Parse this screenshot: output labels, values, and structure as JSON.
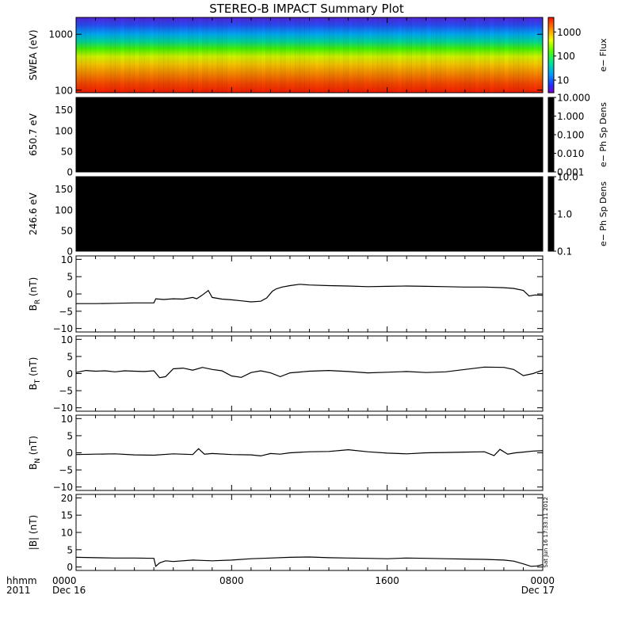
{
  "title": "STEREO-B IMPACT Summary Plot",
  "time_axis": {
    "row1_label": "hhmm",
    "row2_label": "2011",
    "ticks": [
      {
        "hour": 0,
        "label": "0000",
        "sub": "Dec 16"
      },
      {
        "hour": 8,
        "label": "0800",
        "sub": ""
      },
      {
        "hour": 16,
        "label": "1600",
        "sub": ""
      },
      {
        "hour": 24,
        "label": "0000",
        "sub": "Dec 17"
      }
    ],
    "range_hours": [
      0,
      24
    ]
  },
  "timestamp": "Sat Jun 16 17:33:11 2012",
  "colors": {
    "line": "#000000",
    "frame": "#000000",
    "background": "#ffffff",
    "empty_spectrogram": "#000000"
  },
  "chart_data": [
    {
      "type": "heatmap",
      "panel": "swea",
      "ylabel": "SWEA (eV)",
      "yscale": "log",
      "ylim": [
        90,
        2000
      ],
      "yticks": [
        {
          "v": 100,
          "label": "100"
        },
        {
          "v": 1000,
          "label": "1000"
        }
      ],
      "colorbar": {
        "label": "e− Flux",
        "scale": "log",
        "range": [
          3,
          4000
        ],
        "ticks": [
          {
            "v": 10,
            "label": "10"
          },
          {
            "v": 100,
            "label": "100"
          },
          {
            "v": 1000,
            "label": "1000"
          }
        ]
      },
      "energy_ev": [
        100,
        150,
        220,
        330,
        500,
        750,
        1100,
        1600
      ],
      "flux_profile": [
        3000,
        2000,
        900,
        350,
        130,
        45,
        14,
        4
      ]
    },
    {
      "type": "heatmap",
      "panel": "pad650",
      "ylabel": "650.7 eV",
      "ylim": [
        0,
        180
      ],
      "yticks": [
        {
          "v": 0,
          "label": "0"
        },
        {
          "v": 50,
          "label": "50"
        },
        {
          "v": 100,
          "label": "100"
        },
        {
          "v": 150,
          "label": "150"
        }
      ],
      "fill": "no data (black)",
      "colorbar": {
        "label": "e− Ph Sp Dens",
        "scale": "log",
        "range": [
          0.001,
          10
        ],
        "ticks": [
          {
            "v": 10,
            "label": "10.000"
          },
          {
            "v": 1,
            "label": "1.000"
          },
          {
            "v": 0.1,
            "label": "0.100"
          },
          {
            "v": 0.01,
            "label": "0.010"
          },
          {
            "v": 0.001,
            "label": "0.001"
          }
        ]
      }
    },
    {
      "type": "heatmap",
      "panel": "pad246",
      "ylabel": "246.6 eV",
      "ylim": [
        0,
        180
      ],
      "yticks": [
        {
          "v": 0,
          "label": "0"
        },
        {
          "v": 50,
          "label": "50"
        },
        {
          "v": 100,
          "label": "100"
        },
        {
          "v": 150,
          "label": "150"
        }
      ],
      "fill": "no data (black)",
      "colorbar": {
        "label": "e− Ph Sp Dens",
        "scale": "log",
        "range": [
          0.1,
          10
        ],
        "ticks": [
          {
            "v": 10,
            "label": "10.0"
          },
          {
            "v": 1,
            "label": "1.0"
          },
          {
            "v": 0.1,
            "label": "0.1"
          }
        ]
      }
    },
    {
      "type": "line",
      "panel": "br",
      "ylabel_main": "B",
      "ylabel_sub": "R",
      "ylabel_unit": "(nT)",
      "ylim": [
        -11,
        11
      ],
      "yticks": [
        {
          "v": -10,
          "label": "−10"
        },
        {
          "v": -5,
          "label": "−5"
        },
        {
          "v": 0,
          "label": "0"
        },
        {
          "v": 5,
          "label": "5"
        },
        {
          "v": 10,
          "label": "10"
        }
      ],
      "x": [
        0,
        1,
        2,
        3,
        4,
        4.1,
        4.5,
        5,
        5.5,
        6,
        6.2,
        6.5,
        6.8,
        7,
        7.5,
        8,
        8.5,
        9,
        9.5,
        9.8,
        10.1,
        10.3,
        10.6,
        11,
        11.5,
        12,
        13,
        14,
        15,
        16,
        17,
        18,
        19,
        20,
        21,
        22,
        22.5,
        23,
        23.3,
        23.6,
        24
      ],
      "y": [
        -2.8,
        -2.8,
        -2.7,
        -2.6,
        -2.6,
        -1.4,
        -1.6,
        -1.4,
        -1.5,
        -1.0,
        -1.4,
        -0.3,
        1.0,
        -1.0,
        -1.5,
        -1.7,
        -2.0,
        -2.3,
        -2.1,
        -1.2,
        0.8,
        1.5,
        2.0,
        2.4,
        2.8,
        2.6,
        2.4,
        2.3,
        2.1,
        2.2,
        2.3,
        2.2,
        2.1,
        2.0,
        2.0,
        1.8,
        1.6,
        1.0,
        -0.6,
        -0.3,
        -0.4
      ]
    },
    {
      "type": "line",
      "panel": "bt",
      "ylabel_main": "B",
      "ylabel_sub": "T",
      "ylabel_unit": "(nT)",
      "ylim": [
        -11,
        11
      ],
      "yticks": [
        {
          "v": -10,
          "label": "−10"
        },
        {
          "v": -5,
          "label": "−5"
        },
        {
          "v": 0,
          "label": "0"
        },
        {
          "v": 5,
          "label": "5"
        },
        {
          "v": 10,
          "label": "10"
        }
      ],
      "x": [
        0,
        0.5,
        1,
        1.5,
        2,
        2.5,
        3,
        3.5,
        4,
        4.3,
        4.6,
        5,
        5.5,
        6,
        6.5,
        7,
        7.5,
        8,
        8.5,
        9,
        9.5,
        10,
        10.5,
        11,
        12,
        13,
        14,
        15,
        16,
        17,
        18,
        19,
        20,
        21,
        22,
        22.5,
        23,
        23.5,
        24
      ],
      "y": [
        0.3,
        0.9,
        0.7,
        0.8,
        0.5,
        0.8,
        0.7,
        0.6,
        0.8,
        -1.2,
        -0.9,
        1.4,
        1.6,
        1.0,
        1.8,
        1.2,
        0.8,
        -0.7,
        -1.1,
        0.3,
        0.8,
        0.2,
        -0.9,
        0.2,
        0.7,
        0.9,
        0.6,
        0.2,
        0.4,
        0.6,
        0.3,
        0.5,
        1.2,
        1.9,
        1.8,
        1.2,
        -0.6,
        0.0,
        1.0
      ]
    },
    {
      "type": "line",
      "panel": "bn",
      "ylabel_main": "B",
      "ylabel_sub": "N",
      "ylabel_unit": "(nT)",
      "ylim": [
        -11,
        11
      ],
      "yticks": [
        {
          "v": -10,
          "label": "−10"
        },
        {
          "v": -5,
          "label": "−5"
        },
        {
          "v": 0,
          "label": "0"
        },
        {
          "v": 5,
          "label": "5"
        },
        {
          "v": 10,
          "label": "10"
        }
      ],
      "x": [
        0,
        1,
        2,
        3,
        4,
        5,
        6,
        6.3,
        6.6,
        7,
        8,
        9,
        9.5,
        10,
        10.5,
        11,
        12,
        13,
        14,
        15,
        16,
        17,
        18,
        19,
        20,
        21,
        21.5,
        21.8,
        22.2,
        22.6,
        23,
        23.5,
        24
      ],
      "y": [
        -0.5,
        -0.4,
        -0.3,
        -0.6,
        -0.7,
        -0.3,
        -0.5,
        1.2,
        -0.4,
        -0.2,
        -0.5,
        -0.6,
        -0.9,
        -0.2,
        -0.4,
        0.0,
        0.3,
        0.4,
        0.9,
        0.3,
        -0.1,
        -0.3,
        0.0,
        0.1,
        0.2,
        0.3,
        -0.8,
        1.0,
        -0.4,
        0.0,
        0.2,
        0.5,
        0.6
      ]
    },
    {
      "type": "line",
      "panel": "btot",
      "ylabel_main": "|B|",
      "ylabel_sub": "",
      "ylabel_unit": "(nT)",
      "ylim": [
        -1,
        21
      ],
      "yticks": [
        {
          "v": 0,
          "label": "0"
        },
        {
          "v": 5,
          "label": "5"
        },
        {
          "v": 10,
          "label": "10"
        },
        {
          "v": 15,
          "label": "15"
        },
        {
          "v": 20,
          "label": "20"
        }
      ],
      "x": [
        0,
        1,
        2,
        3,
        4,
        4.1,
        4.3,
        4.6,
        5,
        6,
        7,
        8,
        9,
        10,
        11,
        12,
        13,
        14,
        15,
        16,
        17,
        18,
        19,
        20,
        21,
        22,
        22.5,
        23,
        23.4,
        23.7,
        24
      ],
      "y": [
        2.8,
        2.7,
        2.6,
        2.6,
        2.5,
        0.2,
        1.2,
        1.8,
        1.6,
        2.0,
        1.8,
        2.0,
        2.4,
        2.6,
        2.8,
        2.9,
        2.7,
        2.6,
        2.5,
        2.4,
        2.6,
        2.5,
        2.4,
        2.3,
        2.2,
        2.0,
        1.7,
        0.9,
        0.2,
        0.3,
        0.7
      ]
    }
  ]
}
